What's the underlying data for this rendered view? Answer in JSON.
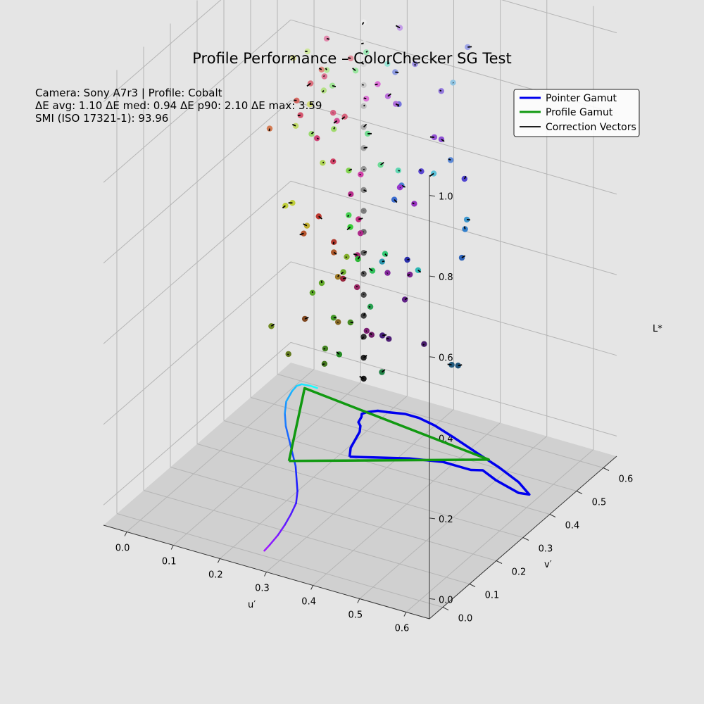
{
  "chart_data": {
    "type": "scatter",
    "title": "Profile Performance – ColorChecker SG Test",
    "info_lines": [
      "Camera: Sony A7r3   |   Profile: Cobalt",
      "ΔE avg: 1.10    ΔE med: 0.94    ΔE p90: 2.10    ΔE max: 3.59",
      "SMI (ISO 17321-1): 93.96"
    ],
    "xlabel": "u′",
    "ylabel": "v′",
    "zlabel": "L*",
    "xlim": [
      -0.05,
      0.65
    ],
    "ylim": [
      -0.05,
      0.65
    ],
    "zlim": [
      -0.05,
      1.05
    ],
    "xticks": [
      "0.0",
      "0.1",
      "0.2",
      "0.3",
      "0.4",
      "0.5",
      "0.6"
    ],
    "yticks": [
      "0.0",
      "0.1",
      "0.2",
      "0.3",
      "0.4",
      "0.5",
      "0.6"
    ],
    "zticks": [
      "0.0",
      "0.2",
      "0.4",
      "0.6",
      "0.8",
      "1.0"
    ],
    "grid": true,
    "legend_position": "top-right",
    "legend": [
      {
        "label": "Pointer Gamut",
        "color": "#0000ee"
      },
      {
        "label": "Profile Gamut",
        "color": "#119911"
      },
      {
        "label": "Correction Vectors",
        "color": "#000000"
      }
    ],
    "spectral_locus": [
      [
        0.257,
        0.017
      ],
      [
        0.255,
        0.04
      ],
      [
        0.25,
        0.08
      ],
      [
        0.242,
        0.12
      ],
      [
        0.232,
        0.16
      ],
      [
        0.22,
        0.2
      ],
      [
        0.2,
        0.24
      ],
      [
        0.175,
        0.28
      ],
      [
        0.15,
        0.32
      ],
      [
        0.12,
        0.36
      ],
      [
        0.09,
        0.4
      ],
      [
        0.06,
        0.44
      ],
      [
        0.035,
        0.48
      ],
      [
        0.015,
        0.52
      ],
      [
        0.005,
        0.56
      ],
      [
        0.003,
        0.58
      ],
      [
        0.008,
        0.59
      ],
      [
        0.025,
        0.593
      ],
      [
        0.04,
        0.592
      ]
    ],
    "pointer_gamut": [
      [
        0.22,
        0.4
      ],
      [
        0.205,
        0.43
      ],
      [
        0.195,
        0.47
      ],
      [
        0.19,
        0.49
      ],
      [
        0.18,
        0.51
      ],
      [
        0.17,
        0.52
      ],
      [
        0.165,
        0.54
      ],
      [
        0.16,
        0.55
      ],
      [
        0.165,
        0.56
      ],
      [
        0.18,
        0.575
      ],
      [
        0.2,
        0.58
      ],
      [
        0.23,
        0.59
      ],
      [
        0.26,
        0.59
      ],
      [
        0.3,
        0.58
      ],
      [
        0.35,
        0.56
      ],
      [
        0.42,
        0.53
      ],
      [
        0.48,
        0.505
      ],
      [
        0.54,
        0.475
      ],
      [
        0.58,
        0.445
      ],
      [
        0.56,
        0.44
      ],
      [
        0.5,
        0.46
      ],
      [
        0.46,
        0.48
      ],
      [
        0.44,
        0.47
      ],
      [
        0.38,
        0.47
      ],
      [
        0.32,
        0.45
      ],
      [
        0.26,
        0.42
      ],
      [
        0.22,
        0.4
      ]
    ],
    "profile_gamut": [
      [
        0.13,
        0.33
      ],
      [
        0.45,
        0.52
      ],
      [
        0.02,
        0.58
      ],
      [
        0.13,
        0.33
      ]
    ],
    "n_patches": 120,
    "z_floor": -0.05
  }
}
